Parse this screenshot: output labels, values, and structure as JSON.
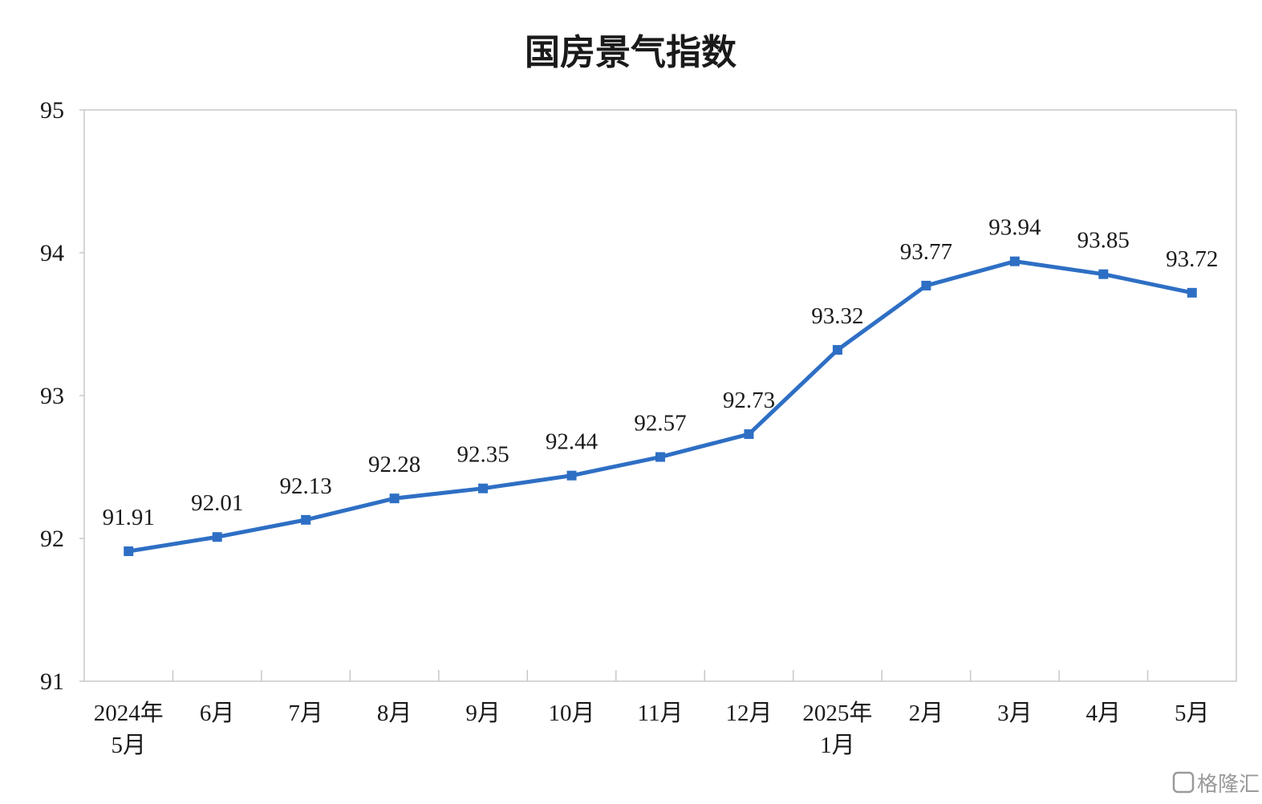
{
  "chart_data": {
    "type": "line",
    "title": "国房景气指数",
    "categories": [
      [
        "2024年",
        "5月"
      ],
      [
        "6月"
      ],
      [
        "7月"
      ],
      [
        "8月"
      ],
      [
        "9月"
      ],
      [
        "10月"
      ],
      [
        "11月"
      ],
      [
        "12月"
      ],
      [
        "2025年",
        "1月"
      ],
      [
        "2月"
      ],
      [
        "3月"
      ],
      [
        "4月"
      ],
      [
        "5月"
      ]
    ],
    "series": [
      {
        "values": [
          91.91,
          92.01,
          92.13,
          92.28,
          92.35,
          92.44,
          92.57,
          92.73,
          93.32,
          93.77,
          93.94,
          93.85,
          93.72
        ],
        "labels": [
          "91.91",
          "92.01",
          "92.13",
          "92.28",
          "92.35",
          "92.44",
          "92.57",
          "92.73",
          "93.32",
          "93.77",
          "93.94",
          "93.85",
          "93.72"
        ],
        "color": "#2e6fc4",
        "marker": "square"
      }
    ],
    "ylim": [
      91,
      95
    ],
    "yticks": [
      "95",
      "94",
      "93",
      "92",
      "91"
    ],
    "grid": false,
    "legend": "none"
  },
  "watermark": {
    "text": "格隆汇",
    "icon": "gelonghui-logo-icon"
  }
}
